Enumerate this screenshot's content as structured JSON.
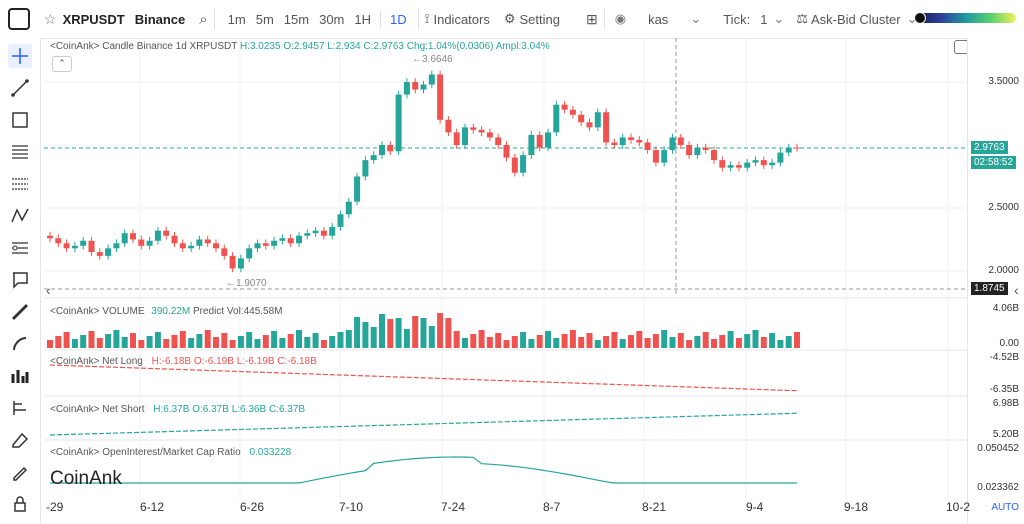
{
  "toolbar": {
    "logo_text": "XRPUSDT",
    "exchange": "Binance",
    "timeframes": [
      "1m",
      "5m",
      "15m",
      "30m",
      "1H",
      "1D"
    ],
    "active_timeframe": "1D",
    "indicators": "Indicators",
    "setting": "Setting",
    "source": "kas",
    "tick_label": "Tick:",
    "tick_value": "1",
    "askbid": "Ask-Bid Cluster"
  },
  "chart": {
    "header": "<CoinAnk> Candle  Binance 1d XRPUSDT",
    "h": "H:3.0235",
    "o": "O:2.9457",
    "l": "L:2.934",
    "c": "C:2.9763",
    "chg": "Chg:1.04%(0.0306)",
    "ampl": "Ampl:3.04%",
    "high_note": "3.6646",
    "low_note": "1.9070",
    "price_now": "2.9763",
    "countdown": "02:58:52",
    "cursor_price": "1.8745"
  },
  "y_axis": [
    "3.5000",
    "2.5000",
    "2.0000"
  ],
  "x_axis": [
    "-29",
    "6-12",
    "6-26",
    "7-10",
    "7-24",
    "8-7",
    "8-21",
    "9-4",
    "9-18",
    "10-2"
  ],
  "volume": {
    "label": "<CoinAnk> VOLUME",
    "value": "390.22M",
    "predict": "Predict Vol:445.58M",
    "axis_top": "4.06B",
    "axis_bot": "0.00"
  },
  "net_long": {
    "label": "<CoinAnk> Net Long",
    "h": "H:-6.18B",
    "o": "O:-6.19B",
    "l": "L:-6.19B",
    "c": "C:-6.18B",
    "axis_top": "-4.52B",
    "axis_bot": "-6.35B"
  },
  "net_short": {
    "label": "<CoinAnk> Net Short",
    "h": "H:6.37B",
    "o": "O:6.37B",
    "l": "L:6.36B",
    "c": "C:6.37B",
    "axis_top": "6.98B",
    "axis_bot": "5.20B"
  },
  "oi": {
    "label": "<CoinAnk> OpenInterest/Market Cap Ratio",
    "value": "0.033228",
    "axis_top": "0.050452",
    "axis_bot": "0.023362",
    "brand": "CoinAnk",
    "auto": "AUTO"
  },
  "colors": {
    "up": "#26a69a",
    "down": "#ef5350",
    "accent": "#2962ff"
  }
}
